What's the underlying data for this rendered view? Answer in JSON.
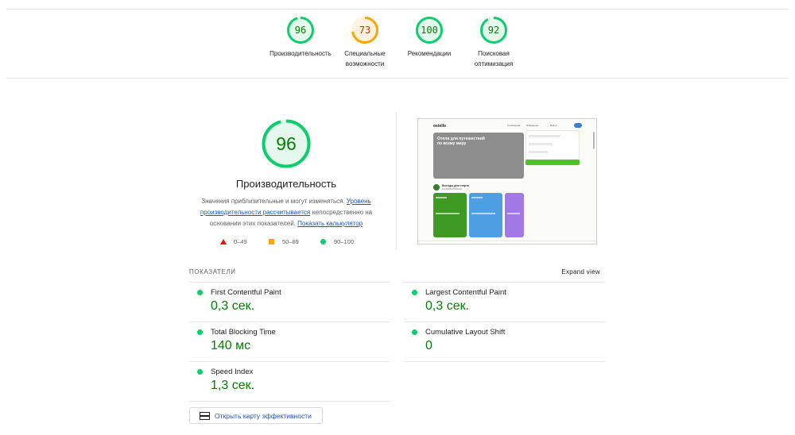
{
  "colors": {
    "pass": "#0cce6b",
    "pass_text": "#008000",
    "average": "#ffa400",
    "average_text": "#c33300",
    "fail": "#eb0f00",
    "link": "#1a56c7"
  },
  "summary": [
    {
      "score": 96,
      "label_line1": "Производительность",
      "label_line2": "",
      "status": "pass"
    },
    {
      "score": 73,
      "label_line1": "Специальные",
      "label_line2": "возможности",
      "status": "average"
    },
    {
      "score": 100,
      "label_line1": "Рекомендации",
      "label_line2": "",
      "status": "pass"
    },
    {
      "score": 92,
      "label_line1": "Поисковая",
      "label_line2": "оптимизация",
      "status": "pass"
    }
  ],
  "performance": {
    "score": 96,
    "title": "Производительность",
    "desc_prefix": "Значения приблизительные и могут изменяться.",
    "desc_link1": "Уровень производительности рассчитывается",
    "desc_middle": "непосредственно на основании этих показателей.",
    "desc_link2": "Показать калькулятор",
    "legend": [
      {
        "shape": "triangle",
        "range": "0–49"
      },
      {
        "shape": "square",
        "range": "50–89"
      },
      {
        "shape": "circle",
        "range": "90–100"
      }
    ]
  },
  "screenshot": {
    "logo": "ostello",
    "nav_items": [
      "Сообщения",
      "Избранное",
      "Войти"
    ],
    "hero_text_line1": "Отели для путешествий",
    "hero_text_line2": "по всему миру",
    "promo_title": "Выгоды для старта"
  },
  "metrics": {
    "heading": "ПОКАЗАТЕЛИ",
    "expand_label": "Expand view",
    "items": [
      {
        "name": "First Contentful Paint",
        "value": "0,3 сек.",
        "status": "pass"
      },
      {
        "name": "Largest Contentful Paint",
        "value": "0,3 сек.",
        "status": "pass"
      },
      {
        "name": "Total Blocking Time",
        "value": "140 мс",
        "status": "pass"
      },
      {
        "name": "Cumulative Layout Shift",
        "value": "0",
        "status": "pass"
      },
      {
        "name": "Speed Index",
        "value": "1,3 сек.",
        "status": "pass"
      }
    ]
  },
  "treemap_button": {
    "label": "Открыть карту эффективности"
  }
}
